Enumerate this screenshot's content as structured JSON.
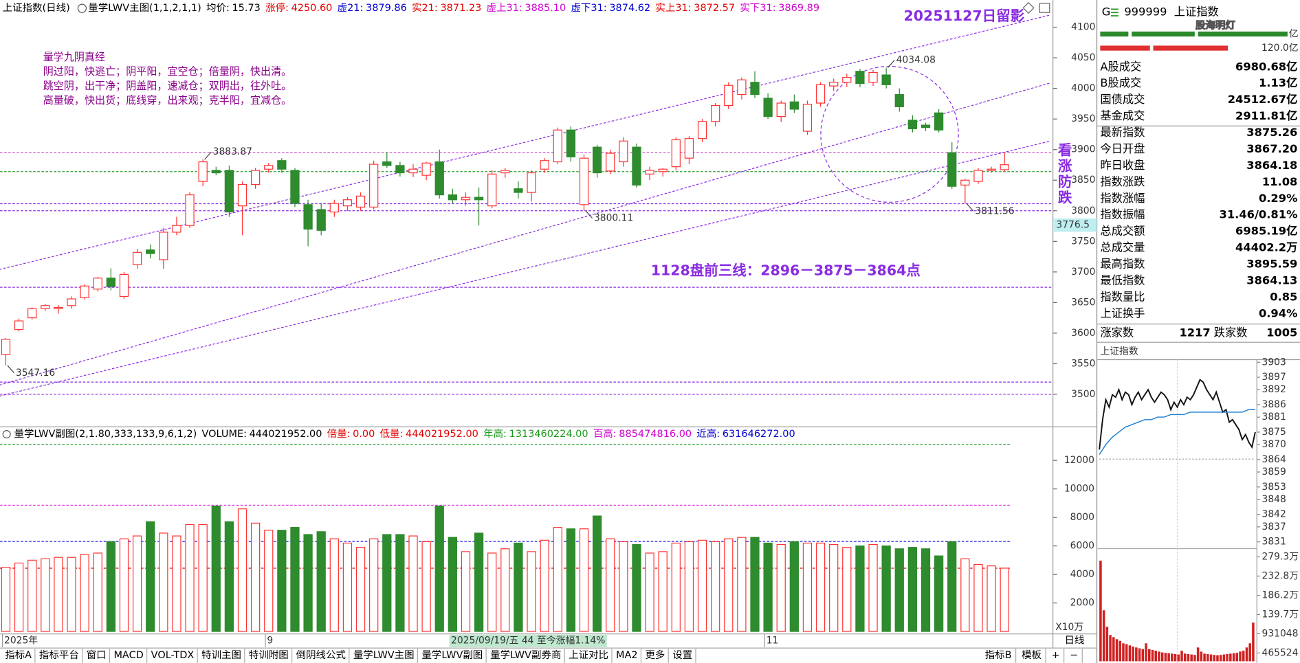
{
  "header": {
    "title": "上证指数(日线)",
    "indicator": "量学LWV主图(1,1,2,1,1)",
    "items": [
      {
        "label": "均价:",
        "value": "15.73",
        "color": "#000000"
      },
      {
        "label": "涨停:",
        "value": "4250.60",
        "color": "#e00000"
      },
      {
        "label": "虚21:",
        "value": "3879.86",
        "color": "#0000d0"
      },
      {
        "label": "实21:",
        "value": "3871.23",
        "color": "#e00000"
      },
      {
        "label": "虚上31:",
        "value": "3885.10",
        "color": "#d000d0"
      },
      {
        "label": "虚下31:",
        "value": "3874.62",
        "color": "#0000d0"
      },
      {
        "label": "实上31:",
        "value": "3872.57",
        "color": "#e00000"
      },
      {
        "label": "实下31:",
        "value": "3869.89",
        "color": "#d000d0"
      }
    ]
  },
  "annotations": {
    "stamp": "20251127日留影",
    "forecast": "1128盘前三线：2896－3875－3864点",
    "vertical": "看涨防跌",
    "poem": [
      "量学九阴真经",
      "阴过阳，快逃亡；阴平阳，宜空仓；倍量阴，快出清。",
      "跳空阴，出干净；阴盖阳，速减仓；双阴出，往外吐。",
      "高量破，快出货；底线穿，出来观；克半阳，宜减仓。"
    ]
  },
  "volume_header": {
    "indicator": "量学LWV副图(2,1.80,333,133,9,6,1,2)",
    "items": [
      {
        "label": "VOLUME:",
        "value": "444021952.00",
        "color": "#000000"
      },
      {
        "label": "倍量:",
        "value": "0.00",
        "color": "#e00000"
      },
      {
        "label": "低量:",
        "value": "444021952.00",
        "color": "#e00000"
      },
      {
        "label": "年高:",
        "value": "1313460224.00",
        "color": "#1a9a1a"
      },
      {
        "label": "百高:",
        "value": "885474816.00",
        "color": "#d000d0"
      },
      {
        "label": "近高:",
        "value": "631646272.00",
        "color": "#0000d0"
      }
    ]
  },
  "chart_data": [
    {
      "type": "candlestick",
      "categories": [
        "2025年",
        null,
        null,
        null,
        null,
        null,
        null,
        null,
        null,
        null,
        null,
        null,
        null,
        null,
        null,
        null,
        null,
        null,
        null,
        null,
        "9",
        null,
        null,
        null,
        null,
        null,
        null,
        null,
        null,
        null,
        null,
        null,
        null,
        null,
        null,
        null,
        null,
        null,
        null,
        null,
        null,
        null,
        null,
        null,
        null,
        null,
        null,
        null,
        null,
        null,
        null,
        null,
        null,
        null,
        null,
        null,
        null,
        null,
        "11",
        null,
        null,
        null,
        null,
        null,
        null,
        null,
        null,
        null,
        null,
        null,
        null,
        null,
        null,
        null,
        null,
        null,
        null
      ],
      "open": [
        3565,
        3606,
        3625,
        3640,
        3640,
        3645,
        3658,
        3672,
        3690,
        3660,
        3712,
        3736,
        3720,
        3765,
        3776,
        3848,
        3866,
        3866,
        3808,
        3843,
        3868,
        3882,
        3866,
        3810,
        3802,
        3798,
        3808,
        3806,
        3806,
        3880,
        3874,
        3862,
        3858,
        3880,
        3826,
        3818,
        3822,
        3808,
        3862,
        3836,
        3830,
        3868,
        3880,
        3932,
        3810,
        3904,
        3865,
        3880,
        3904,
        3860,
        3864,
        3872,
        3886,
        3918,
        3946,
        3972,
        3990,
        4010,
        3984,
        3954,
        3978,
        3930,
        3976,
        4004,
        4010,
        4028,
        4010,
        4022,
        3990,
        3948,
        3940,
        3960,
        3895,
        3842,
        3848,
        3866,
        3867.2
      ],
      "high": [
        3592,
        3624,
        3642,
        3648,
        3646,
        3660,
        3680,
        3692,
        3706,
        3700,
        3738,
        3745,
        3772,
        3790,
        3830,
        3883.87,
        3872,
        3874,
        3848,
        3870,
        3878,
        3886,
        3870,
        3818,
        3812,
        3818,
        3822,
        3830,
        3882,
        3896,
        3880,
        3876,
        3880,
        3900,
        3836,
        3830,
        3838,
        3866,
        3870,
        3848,
        3866,
        3886,
        3936,
        3938,
        3892,
        3908,
        3900,
        3920,
        3910,
        3872,
        3870,
        3920,
        3922,
        3950,
        3976,
        4010,
        4018,
        4028,
        3992,
        3980,
        3990,
        3980,
        4010,
        4016,
        4024,
        4032,
        4030,
        4034.08,
        4000,
        3956,
        3944,
        3966,
        3912,
        3852,
        3870,
        3872,
        3895.59
      ],
      "low": [
        3547.16,
        3603,
        3622,
        3636,
        3632,
        3640,
        3655,
        3668,
        3670,
        3656,
        3705,
        3722,
        3705,
        3760,
        3772,
        3840,
        3858,
        3790,
        3760,
        3836,
        3862,
        3862,
        3806,
        3742,
        3760,
        3790,
        3800,
        3800,
        3802,
        3870,
        3856,
        3855,
        3850,
        3820,
        3812,
        3808,
        3776,
        3804,
        3854,
        3820,
        3815,
        3862,
        3876,
        3880,
        3800.11,
        3854,
        3860,
        3872,
        3838,
        3850,
        3856,
        3866,
        3876,
        3912,
        3938,
        3966,
        3982,
        3984,
        3950,
        3945,
        3960,
        3924,
        3970,
        3996,
        4002,
        4002,
        4004,
        4000,
        3962,
        3928,
        3930,
        3928,
        3836,
        3811.56,
        3844,
        3862,
        3864.13
      ],
      "close": [
        3590,
        3620,
        3640,
        3645,
        3642,
        3656,
        3677,
        3690,
        3676,
        3696,
        3732,
        3730,
        3765,
        3776,
        3826,
        3880,
        3862,
        3798,
        3843,
        3866,
        3874,
        3868,
        3812,
        3770,
        3768,
        3812,
        3818,
        3824,
        3876,
        3874,
        3862,
        3868,
        3878,
        3826,
        3818,
        3822,
        3818,
        3860,
        3866,
        3830,
        3862,
        3882,
        3932,
        3888,
        3886,
        3862,
        3894,
        3914,
        3842,
        3866,
        3868,
        3916,
        3918,
        3946,
        3972,
        4005,
        4014,
        3990,
        3954,
        3976,
        3966,
        3974,
        4006,
        4010,
        4018,
        4008,
        4026,
        4006,
        3970,
        3934,
        3936,
        3932,
        3840,
        3850,
        3866,
        3868,
        3875.26
      ],
      "up_color": "#ff3232",
      "down_color": "#2e8b2e",
      "ylim": [
        3451,
        4120
      ],
      "yticks": [
        3500,
        3550,
        3600,
        3650,
        3700,
        3750,
        3800,
        3850,
        3900,
        3950,
        4000,
        4050,
        4100
      ],
      "extreme_labels": [
        {
          "index": 0,
          "value": 3547.16
        },
        {
          "index": 15,
          "value": 3883.87
        },
        {
          "index": 44,
          "value": 3800.11
        },
        {
          "index": 67,
          "value": 4034.08
        },
        {
          "index": 73,
          "value": 3811.56
        }
      ],
      "h_lines": [
        {
          "value": 3895,
          "color": "#c040c0"
        },
        {
          "value": 3864,
          "color": "#2e9a2e"
        },
        {
          "value": 3811.56,
          "color": "#8a2be2"
        },
        {
          "value": 3800,
          "color": "#8a2be2"
        },
        {
          "value": 3675,
          "color": "#8a2be2"
        },
        {
          "value": 3520,
          "color": "#8a2be2"
        },
        {
          "value": 3500,
          "color": "#8a2be2"
        }
      ],
      "trend_lines": [
        {
          "from": [
            -0.5,
            3704
          ],
          "to": [
            79.5,
            4120
          ],
          "color": "#8a2be2"
        },
        {
          "from": [
            -0.5,
            3515
          ],
          "to": [
            79.5,
            4009
          ],
          "color": "#8a2be2"
        },
        {
          "from": [
            -0.5,
            3497
          ],
          "to": [
            79.5,
            3914
          ],
          "color": "#8a2be2"
        }
      ],
      "cursor_value": 3776.5,
      "period_label": "日线",
      "cursor_info": "2025/09/19/五 44 至今涨幅1.14%"
    },
    {
      "type": "bar",
      "unit_label": "X10万",
      "values": [
        4500,
        4800,
        5000,
        5100,
        5200,
        5200,
        5400,
        5500,
        6300,
        6500,
        6700,
        7700,
        6900,
        6700,
        7500,
        7500,
        8800,
        7700,
        8600,
        7600,
        7100,
        7100,
        7300,
        6800,
        7000,
        6500,
        6200,
        5900,
        6500,
        6800,
        6800,
        6700,
        6300,
        8800,
        6600,
        5600,
        6900,
        5500,
        5800,
        6200,
        5600,
        6400,
        7300,
        7200,
        7200,
        8100,
        6500,
        6300,
        6100,
        5500,
        5600,
        6200,
        6300,
        6400,
        6300,
        6500,
        6600,
        6600,
        6200,
        6100,
        6300,
        6200,
        6200,
        6100,
        5900,
        6000,
        6100,
        6000,
        5800,
        5900,
        5800,
        5300,
        6300,
        5100,
        4700,
        4600,
        4440.2
      ],
      "ylim": [
        0,
        13488
      ],
      "yticks": [
        2000,
        4000,
        6000,
        8000,
        10000,
        12000
      ],
      "h_lines": [
        {
          "value": 13134.6,
          "color": "#2e9a2e"
        },
        {
          "value": 8854.7,
          "color": "#e040e0"
        },
        {
          "value": 6316.5,
          "color": "#0000e0"
        },
        {
          "value": 4440.2,
          "color": "#e00000"
        }
      ]
    },
    {
      "type": "line",
      "title": "上证指数",
      "base": 3864.18,
      "x": [
        0,
        1,
        2,
        3,
        4,
        5,
        6,
        7,
        8,
        9,
        10,
        11,
        12,
        13,
        14,
        15,
        16,
        17,
        18,
        19,
        20,
        21,
        22,
        23,
        24,
        25,
        26,
        27,
        28,
        29,
        30,
        31,
        32,
        33,
        34,
        35,
        36,
        37,
        38,
        39,
        40,
        41,
        42,
        43,
        44,
        45,
        46,
        47,
        48
      ],
      "series": [
        {
          "color": "#111111",
          "x": [
            0,
            1,
            2,
            3,
            4,
            5,
            6,
            7,
            8,
            9,
            10,
            11,
            12,
            13,
            14,
            15,
            16,
            17,
            18,
            19,
            20,
            21,
            22,
            23,
            24,
            25,
            26,
            27,
            28,
            29,
            30,
            31,
            32,
            33,
            34,
            35,
            36,
            37,
            38,
            39,
            40,
            41,
            42,
            43,
            44,
            45,
            46,
            47,
            48
          ],
          "values": [
            3868,
            3880,
            3888,
            3885,
            3890,
            3889,
            3892,
            3888,
            3891,
            3890,
            3886,
            3889,
            3891,
            3888,
            3890,
            3892,
            3889,
            3887,
            3889,
            3891,
            3890,
            3888,
            3884,
            3887,
            3885,
            3888,
            3886,
            3889,
            3888,
            3890,
            3893,
            3896,
            3895,
            3892,
            3890,
            3888,
            3891,
            3887,
            3883,
            3884,
            3879,
            3880,
            3878,
            3876,
            3872,
            3874,
            3871,
            3869,
            3875
          ]
        },
        {
          "color": "#1e7fd0",
          "x": [
            0,
            2,
            4,
            6,
            8,
            10,
            12,
            14,
            16,
            18,
            20,
            22,
            24,
            26,
            28,
            30,
            32,
            34,
            36,
            38,
            40,
            42,
            44,
            46,
            48
          ],
          "values": [
            3866,
            3870,
            3873,
            3875,
            3877,
            3878,
            3879,
            3880,
            3880,
            3881,
            3881,
            3882,
            3882,
            3882,
            3883,
            3883,
            3883,
            3883,
            3883,
            3883,
            3883,
            3883,
            3883,
            3884,
            3884
          ]
        }
      ],
      "xlim": [
        0,
        48
      ],
      "ylim": [
        3828.3,
        3904.7
      ],
      "yticks": [
        3903,
        3897,
        3892,
        3886,
        3881,
        3875,
        3870,
        3864,
        3859,
        3853,
        3848,
        3842,
        3837,
        3831
      ],
      "volume": {
        "type": "bar",
        "values": [
          2700000,
          1500000,
          1100000,
          900000,
          850000,
          800000,
          760000,
          700000,
          680000,
          650000,
          620000,
          600000,
          580000,
          560000,
          700000,
          560000,
          540000,
          520000,
          500000,
          480000,
          470000,
          460000,
          450000,
          440000,
          430000,
          520000,
          450000,
          440000,
          430000,
          420000,
          600000,
          500000,
          450000,
          440000,
          430000,
          420000,
          410000,
          420000,
          430000,
          440000,
          450000,
          460000,
          470000,
          500000,
          520000,
          600000,
          700000,
          1200000
        ],
        "color": "#d02020",
        "ylim": [
          265000,
          2933000
        ],
        "yticks": [
          {
            "value": 2793000,
            "label": "279.3万"
          },
          {
            "value": 2328000,
            "label": "232.8万"
          },
          {
            "value": 1862000,
            "label": "186.2万"
          },
          {
            "value": 1397000,
            "label": "139.7万"
          },
          931048,
          465524
        ]
      }
    }
  ],
  "side_panel": {
    "code_prefix": "G",
    "code": "999999",
    "name": "上证指数",
    "watermark": "股海明灯",
    "top_unit": "亿",
    "top_value": "120.0亿",
    "rows": [
      {
        "label": "A股成交",
        "value": "6980.68亿",
        "color": "#000000"
      },
      {
        "label": "B股成交",
        "value": "1.13亿",
        "color": "#000000"
      },
      {
        "label": "国债成交",
        "value": "24512.67亿",
        "color": "#000000"
      },
      {
        "label": "基金成交",
        "value": "2911.81亿",
        "color": "#000000"
      },
      {
        "label": "最新指数",
        "value": "3875.26",
        "color": "#e00000"
      },
      {
        "label": "今日开盘",
        "value": "3867.20",
        "color": "#e00000"
      },
      {
        "label": "昨日收盘",
        "value": "3864.18",
        "color": "#000000"
      },
      {
        "label": "指数涨跌",
        "value": "11.08",
        "color": "#e00000"
      },
      {
        "label": "指数涨幅",
        "value": "0.29%",
        "color": "#e00000"
      },
      {
        "label": "指数振幅",
        "value": "31.46/0.81%",
        "color": "#000000"
      },
      {
        "label": "总成交额",
        "value": "6985.19亿",
        "color": "#000000"
      },
      {
        "label": "总成交量",
        "value": "44402.2万",
        "color": "#000000"
      },
      {
        "label": "最高指数",
        "value": "3895.59",
        "color": "#e00000"
      },
      {
        "label": "最低指数",
        "value": "3864.13",
        "color": "#1a9a1a"
      },
      {
        "label": "指数量比",
        "value": "0.85",
        "color": "#000000"
      },
      {
        "label": "上证换手",
        "value": "0.94%",
        "color": "#000000"
      }
    ],
    "breadth": {
      "up_label": "涨家数",
      "up": "1217",
      "down_label": "跌家数",
      "down": "1005"
    }
  },
  "tabs": {
    "left": [
      "指标A",
      "指标平台",
      "窗口",
      "MACD",
      "VOL-TDX",
      "特训主图",
      "特训附图",
      "倒阴线公式",
      "量学LWV主图",
      "量学LWV副图",
      "量学LWV副券商",
      "上证对比",
      "MA2",
      "更多",
      "设置"
    ],
    "active": "量学LWV副图",
    "right": [
      "指标B",
      "模板",
      "+",
      "−"
    ]
  }
}
